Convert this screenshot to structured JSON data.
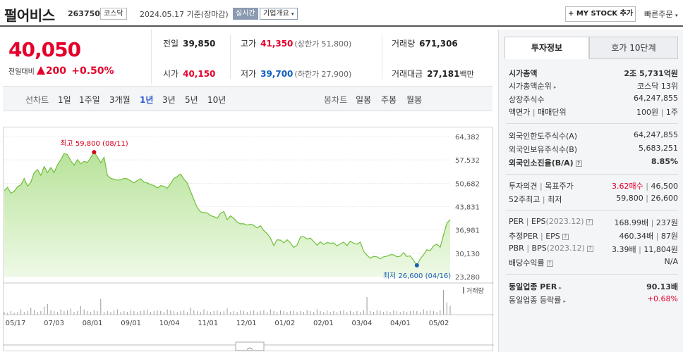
{
  "header": {
    "name": "펄어비스",
    "code": "263750",
    "market": "코스닥",
    "date": "2024.05.17",
    "basis": "기준(장마감)",
    "realtime": "실시간",
    "company_info": "기업개요",
    "mystock_label": "+ MY STOCK 추가",
    "quick_order": "빠른주문"
  },
  "price": {
    "current": "40,050",
    "change_label": "전일대비",
    "change": "200",
    "change_pct": "+0.50%"
  },
  "stats": {
    "prev_label": "전일",
    "prev": "39,850",
    "open_label": "시가",
    "open": "40,150",
    "high_label": "고가",
    "high": "41,350",
    "upper_limit": "(상한가 51,800)",
    "low_label": "저가",
    "low": "39,700",
    "lower_limit": "(하한가 27,900)",
    "volume_label": "거래량",
    "volume": "671,306",
    "amount_label": "거래대금",
    "amount": "27,181",
    "amount_unit": "백만"
  },
  "tabs": {
    "line_label": "선차트",
    "line_items": [
      "1일",
      "1주일",
      "3개월",
      "1년",
      "3년",
      "5년",
      "10년"
    ],
    "selected": "1년",
    "candle_label": "봉차트",
    "candle_items": [
      "일봉",
      "주봉",
      "월봉"
    ]
  },
  "chart_data": {
    "type": "line",
    "y_ticks": [
      "64,382",
      "57,532",
      "50,682",
      "43,831",
      "36,981",
      "30,130",
      "23,280"
    ],
    "ylim": [
      23280,
      64382
    ],
    "x_labels": [
      "05/17",
      "07/03",
      "08/01",
      "09/01",
      "10/04",
      "11/01",
      "12/01",
      "01/02",
      "02/01",
      "03/04",
      "04/01",
      "05/02"
    ],
    "max_annotation": "최고 59,800 (08/11)",
    "min_annotation": "최저 26,600 (04/16)",
    "volume_label": "거래량",
    "series": [
      {
        "values": [
          48500,
          49500,
          47800,
          48300,
          49700,
          50200,
          52100,
          49800,
          51000,
          53800,
          54700,
          53000,
          55600,
          53800,
          55300,
          53800,
          56100,
          57600,
          59400,
          59100,
          57300,
          56000,
          57600,
          56400,
          57100,
          56800,
          58200,
          59800,
          58400,
          56700,
          58300,
          53000,
          52100,
          51900,
          51600,
          51700,
          52100,
          52000,
          51400,
          50800,
          51500,
          52000,
          51000,
          50800,
          50300,
          50000,
          49300,
          50000,
          49800,
          49200,
          50600,
          52100,
          52700,
          53400,
          51900,
          50800,
          48300,
          45900,
          43500,
          42300,
          42100,
          42000,
          41200,
          40900,
          40400,
          41900,
          42400,
          40000,
          41100,
          40400,
          39300,
          38800,
          38800,
          38400,
          38700,
          38300,
          37600,
          38200,
          36800,
          35900,
          34600,
          32400,
          34100,
          34000,
          33200,
          34100,
          33200,
          31900,
          32500,
          34900,
          35000,
          34300,
          34600,
          33600,
          32500,
          33500,
          32700,
          33300,
          33100,
          33200,
          32300,
          32900,
          33400,
          32400,
          33700,
          33100,
          32800,
          33400,
          30700,
          29600,
          28700,
          29200,
          29100,
          28500,
          29100,
          29300,
          29700,
          29700,
          29100,
          29300,
          30300,
          29200,
          29400,
          28100,
          26600,
          28500,
          29700,
          31200,
          30900,
          32300,
          32800,
          31900,
          35500,
          39000,
          40050
        ]
      }
    ],
    "volume": [
      3,
      2,
      4,
      2,
      3,
      6,
      3,
      4,
      8,
      5,
      3,
      4,
      9,
      12,
      5,
      4,
      3,
      6,
      4,
      5,
      7,
      3,
      4,
      10,
      6,
      4,
      3,
      5,
      4,
      18,
      3,
      4,
      3,
      5,
      6,
      3,
      4,
      3,
      5,
      4,
      3,
      4,
      5,
      6,
      3,
      4,
      5,
      4,
      3,
      6,
      5,
      4,
      3,
      4,
      5,
      3,
      8,
      5,
      4,
      3,
      6,
      4,
      3,
      4,
      5,
      3,
      4,
      7,
      3,
      4,
      3,
      5,
      4,
      3,
      4,
      5,
      3,
      4,
      5,
      3,
      6,
      4,
      3,
      5,
      4,
      3,
      4,
      5,
      3,
      4,
      3,
      5,
      4,
      3,
      6,
      4,
      3,
      5,
      3,
      4,
      3,
      4,
      5,
      3,
      4,
      3,
      4,
      3,
      5,
      20,
      4,
      3,
      5,
      4,
      3,
      4,
      3,
      5,
      4,
      3,
      4,
      3,
      4,
      5,
      4,
      3,
      6,
      4,
      5,
      4,
      3,
      5,
      28,
      14,
      10
    ]
  },
  "right_panel": {
    "tab_invest": "투자정보",
    "tab_hoga": "호가 10단계",
    "rows": {
      "mktcap_label": "시가총액",
      "mktcap": "2조 5,731억원",
      "mktrank_label": "시가총액순위",
      "mktrank": "코스닥 13위",
      "shares_label": "상장주식수",
      "shares": "64,247,855",
      "par_label": "액면가",
      "par_sep": "매매단위",
      "par": "100원",
      "unit": "1주",
      "foreign_limit_label": "외국인한도주식수(A)",
      "foreign_limit": "64,247,855",
      "foreign_hold_label": "외국인보유주식수(B)",
      "foreign_hold": "5,683,251",
      "foreign_ratio_label": "외국인소진율(B/A)",
      "foreign_ratio": "8.85%",
      "opinion_label": "투자의견",
      "target_label": "목표주가",
      "opinion": "3.62매수",
      "target": "46,500",
      "w52_label": "52주최고",
      "w52_sep": "최저",
      "w52_high": "59,800",
      "w52_low": "26,600",
      "per_label": "PER",
      "eps_label": "EPS",
      "eps_year": "(2023.12)",
      "per": "168.99배",
      "eps": "237원",
      "eper_label": "추정PER",
      "eeps_label": "EPS",
      "eper": "460.34배",
      "eeps": "87원",
      "pbr_label": "PBR",
      "bps_label": "BPS",
      "bps_year": "(2023.12)",
      "pbr": "3.39배",
      "bps": "11,804원",
      "div_label": "배당수익률",
      "div": "N/A",
      "ind_per_label": "동일업종 PER",
      "ind_per": "90.13배",
      "ind_chg_label": "동일업종 등락률",
      "ind_chg": "+0.68%"
    }
  }
}
